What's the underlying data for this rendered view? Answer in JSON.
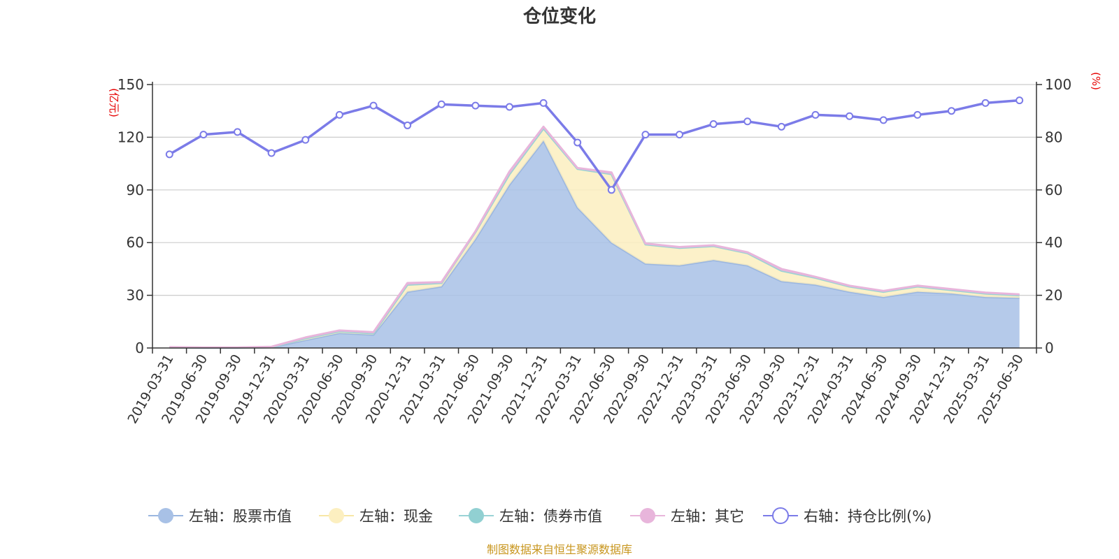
{
  "chart_data": {
    "type": "area",
    "title": "仓位变化",
    "left_axis_unit": "(亿元)",
    "right_axis_unit": "(%)",
    "left_ylim": [
      0,
      150
    ],
    "right_ylim": [
      0,
      100
    ],
    "left_ticks": [
      "0",
      "30",
      "60",
      "90",
      "120",
      "150"
    ],
    "right_ticks": [
      "0",
      "20",
      "40",
      "60",
      "80",
      "100"
    ],
    "categories": [
      "2019-03-31",
      "2019-06-30",
      "2019-09-30",
      "2019-12-31",
      "2020-03-31",
      "2020-06-30",
      "2020-09-30",
      "2020-12-31",
      "2021-03-31",
      "2021-06-30",
      "2021-09-30",
      "2021-12-31",
      "2022-03-31",
      "2022-06-30",
      "2022-09-30",
      "2022-12-31",
      "2023-03-31",
      "2023-06-30",
      "2023-09-30",
      "2023-12-31",
      "2024-03-31",
      "2024-06-30",
      "2024-09-30",
      "2024-12-31",
      "2025-03-31",
      "2025-06-30"
    ],
    "series": [
      {
        "name": "左轴：股票市值",
        "axis": "left",
        "color": "#a8c1e6",
        "line": "#9ab6e0",
        "values": [
          0.2,
          0.1,
          0.1,
          0.4,
          4.5,
          8.5,
          7.5,
          32,
          35,
          62,
          93,
          118,
          80,
          60,
          48,
          47,
          50,
          47,
          38,
          36,
          32,
          29,
          32,
          31,
          29,
          28.5
        ]
      },
      {
        "name": "左轴：现金",
        "axis": "left",
        "color": "#fcefc0",
        "line": "#f7e6a6",
        "values": [
          0.1,
          0.1,
          0.1,
          0.1,
          1,
          1,
          0.8,
          4,
          2,
          4,
          6,
          7,
          22,
          39,
          11,
          10,
          8,
          7,
          6,
          4,
          3,
          3,
          3,
          2,
          2,
          1.5
        ]
      },
      {
        "name": "左轴：债券市值",
        "axis": "left",
        "color": "#91d0d2",
        "line": "#9ad3d6",
        "values": [
          0,
          0,
          0,
          0,
          0,
          0,
          0,
          0,
          0,
          0,
          0,
          0,
          0,
          0,
          0,
          0,
          0,
          0,
          0,
          0,
          0,
          0,
          0,
          0,
          0,
          0
        ]
      },
      {
        "name": "左轴：其它",
        "axis": "left",
        "color": "#e8b5db",
        "line": "#e8b5db",
        "values": [
          0.2,
          0.1,
          0.1,
          0.2,
          0.5,
          0.5,
          0.7,
          1,
          0.5,
          0.5,
          1.5,
          1,
          0.5,
          1,
          0.5,
          0.5,
          0.5,
          0.5,
          1,
          0.5,
          0.5,
          0.5,
          0.5,
          0.5,
          0.5,
          0.5
        ]
      },
      {
        "name": "右轴：持仓比例(%)",
        "axis": "right",
        "color": "#7b7be8",
        "line": "#7b7be8",
        "values": [
          73.5,
          81,
          82,
          74,
          79,
          88.5,
          92,
          84.5,
          92.5,
          92,
          91.5,
          93,
          78,
          60,
          81,
          81,
          85,
          86,
          84,
          88.5,
          88,
          86.5,
          88.5,
          90,
          93,
          94
        ]
      }
    ],
    "legend_position": "bottom"
  },
  "source_text": "制图数据来自恒生聚源数据库"
}
